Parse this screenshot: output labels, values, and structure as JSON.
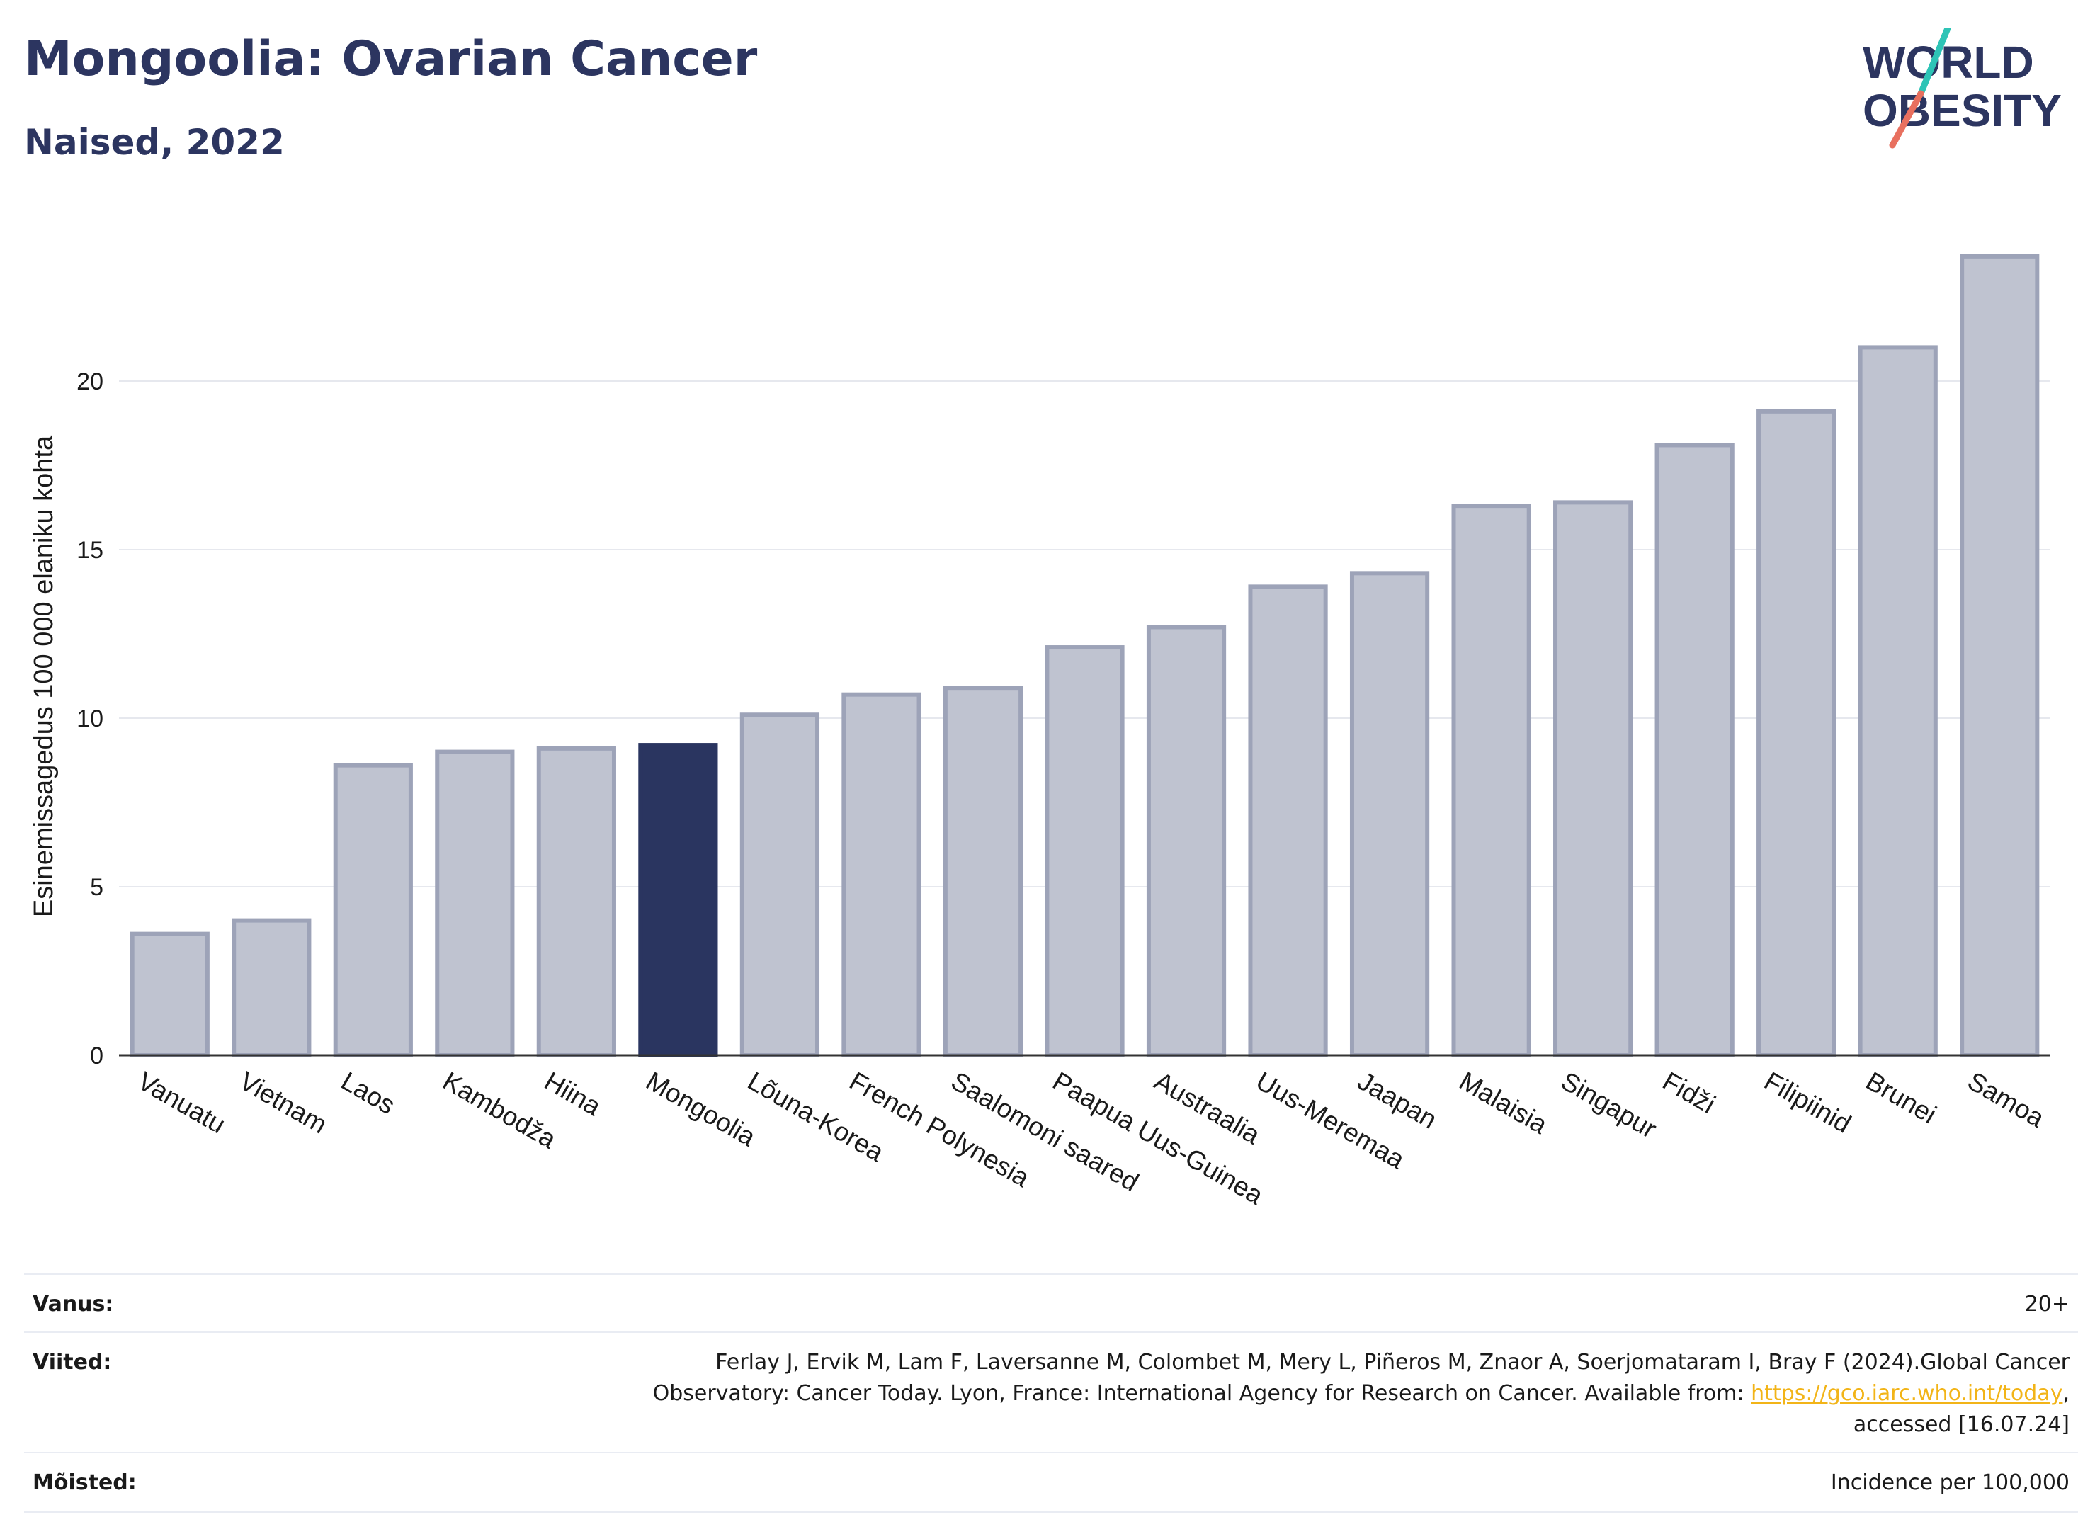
{
  "header": {
    "title": "Mongoolia: Ovarian Cancer",
    "subtitle": "Naised, 2022"
  },
  "logo": {
    "line1": "WORLD",
    "line2": "OBESITY",
    "colors": {
      "text": "#2c3560",
      "teal": "#2ec4b6",
      "coral": "#e8705f"
    }
  },
  "chart_data": {
    "type": "bar",
    "ylabel": "Esinemissagedus 100 000 elaniku kohta",
    "yticks": [
      0,
      5,
      10,
      15,
      20
    ],
    "ylim": [
      0,
      25
    ],
    "grid": true,
    "highlight": "Mongoolia",
    "colors": {
      "bar": "#bfc3d0",
      "bar_edge": "#9da3b8",
      "highlight": "#2a3560",
      "grid": "#e6e8ee",
      "axis": "#333333"
    },
    "categories": [
      "Vanuatu",
      "Vietnam",
      "Laos",
      "Kambodža",
      "Hiina",
      "Mongoolia",
      "Lõuna-Korea",
      "French Polynesia",
      "Saalomoni saared",
      "Paapua Uus-Guinea",
      "Austraalia",
      "Uus-Meremaa",
      "Jaapan",
      "Malaisia",
      "Singapur",
      "Fidži",
      "Filipiinid",
      "Brunei",
      "Samoa"
    ],
    "values": [
      3.6,
      4.0,
      8.6,
      9.0,
      9.1,
      9.2,
      10.1,
      10.7,
      10.9,
      12.1,
      12.7,
      13.9,
      14.3,
      16.3,
      16.4,
      18.1,
      19.1,
      21.0,
      23.7
    ]
  },
  "footer": {
    "age_label": "Vanus:",
    "age_value": "20+",
    "refs_label": "Viited:",
    "refs_line1": "Ferlay J, Ervik M, Lam F, Laversanne M, Colombet M, Mery L, Piñeros M, Znaor A, Soerjomataram I, Bray F (2024).Global Cancer",
    "refs_line2": "Observatory: Cancer Today. Lyon, France: International Agency for Research on Cancer. Available from: ",
    "refs_link": "https://gco.iarc.who.int/today",
    "refs_line2_end": ",",
    "refs_line3": "accessed [16.07.24]",
    "defs_label": "Mõisted:",
    "defs_value": "Incidence per 100,000"
  }
}
